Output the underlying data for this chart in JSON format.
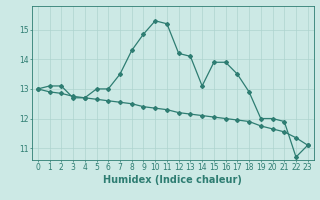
{
  "line1_x": [
    0,
    1,
    2,
    3,
    4,
    5,
    6,
    7,
    8,
    9,
    10,
    11,
    12,
    13,
    14,
    15,
    16,
    17,
    18,
    19,
    20,
    21,
    22,
    23
  ],
  "line1_y": [
    13.0,
    13.1,
    13.1,
    12.7,
    12.7,
    13.0,
    13.0,
    13.5,
    14.3,
    14.85,
    15.3,
    15.2,
    14.2,
    14.1,
    13.1,
    13.9,
    13.9,
    13.5,
    12.9,
    12.0,
    12.0,
    11.9,
    10.7,
    11.1
  ],
  "line2_x": [
    0,
    1,
    2,
    3,
    4,
    5,
    6,
    7,
    8,
    9,
    10,
    11,
    12,
    13,
    14,
    15,
    16,
    17,
    18,
    19,
    20,
    21,
    22,
    23
  ],
  "line2_y": [
    13.0,
    12.9,
    12.85,
    12.75,
    12.7,
    12.65,
    12.6,
    12.55,
    12.5,
    12.4,
    12.35,
    12.3,
    12.2,
    12.15,
    12.1,
    12.05,
    12.0,
    11.95,
    11.9,
    11.75,
    11.65,
    11.55,
    11.35,
    11.1
  ],
  "line_color": "#2e7d72",
  "bg_color": "#cce9e5",
  "grid_color": "#aed4cf",
  "xlabel": "Humidex (Indice chaleur)",
  "ylabel_ticks": [
    11,
    12,
    13,
    14,
    15
  ],
  "xlim": [
    -0.5,
    23.5
  ],
  "ylim": [
    10.6,
    15.8
  ],
  "xtick_labels": [
    "0",
    "1",
    "2",
    "3",
    "4",
    "5",
    "6",
    "7",
    "8",
    "9",
    "10",
    "11",
    "12",
    "13",
    "14",
    "15",
    "16",
    "17",
    "18",
    "19",
    "20",
    "21",
    "22",
    "23"
  ],
  "marker": "D",
  "markersize": 2.0,
  "linewidth": 0.9,
  "xlabel_fontsize": 7,
  "tick_fontsize": 5.5
}
